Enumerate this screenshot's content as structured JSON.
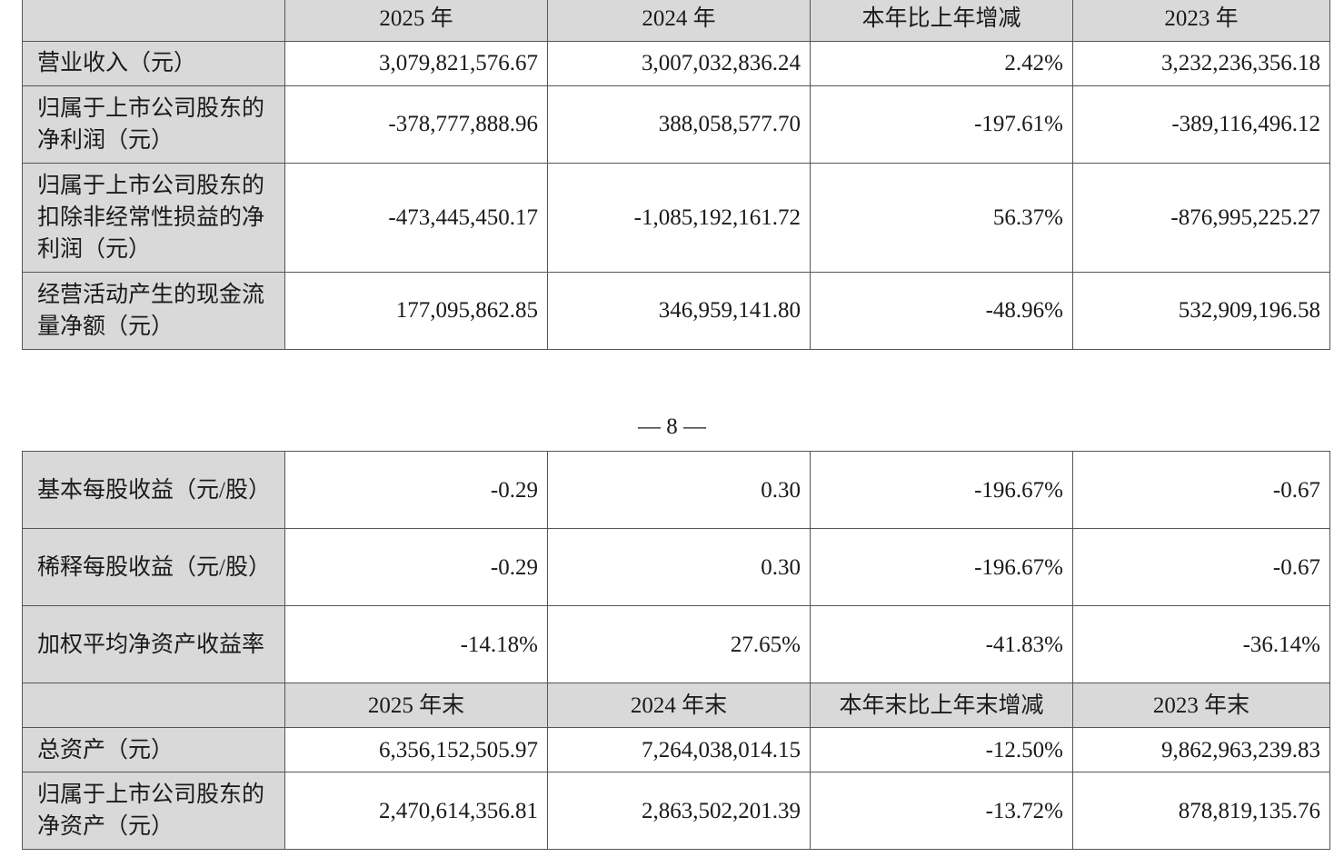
{
  "top_table": {
    "header": [
      "",
      "2025 年",
      "2024 年",
      "本年比上年增减",
      "2023 年"
    ],
    "rows": [
      {
        "label": "营业收入（元）",
        "values": [
          "3,079,821,576.67",
          "3,007,032,836.24",
          "2.42%",
          "3,232,236,356.18"
        ]
      },
      {
        "label": "归属于上市公司股东的净利润（元）",
        "values": [
          "-378,777,888.96",
          "388,058,577.70",
          "-197.61%",
          "-389,116,496.12"
        ]
      },
      {
        "label": "归属于上市公司股东的扣除非经常性损益的净利润（元）",
        "values": [
          "-473,445,450.17",
          "-1,085,192,161.72",
          "56.37%",
          "-876,995,225.27"
        ]
      },
      {
        "label": "经营活动产生的现金流量净额（元）",
        "values": [
          "177,095,862.85",
          "346,959,141.80",
          "-48.96%",
          "532,909,196.58"
        ]
      }
    ]
  },
  "page_number": "— 8 —",
  "bottom_table": {
    "rows_a": [
      {
        "label": "基本每股收益（元/股）",
        "values": [
          "-0.29",
          "0.30",
          "-196.67%",
          "-0.67"
        ]
      },
      {
        "label": "稀释每股收益（元/股）",
        "values": [
          "-0.29",
          "0.30",
          "-196.67%",
          "-0.67"
        ]
      },
      {
        "label": "加权平均净资产收益率",
        "values": [
          "-14.18%",
          "27.65%",
          "-41.83%",
          "-36.14%"
        ]
      }
    ],
    "header2": [
      "",
      "2025 年末",
      "2024 年末",
      "本年末比上年末增减",
      "2023 年末"
    ],
    "rows_b": [
      {
        "label": "总资产（元）",
        "values": [
          "6,356,152,505.97",
          "7,264,038,014.15",
          "-12.50%",
          "9,862,963,239.83"
        ]
      },
      {
        "label": "归属于上市公司股东的净资产（元）",
        "values": [
          "2,470,614,356.81",
          "2,863,502,201.39",
          "-13.72%",
          "878,819,135.76"
        ]
      }
    ]
  }
}
